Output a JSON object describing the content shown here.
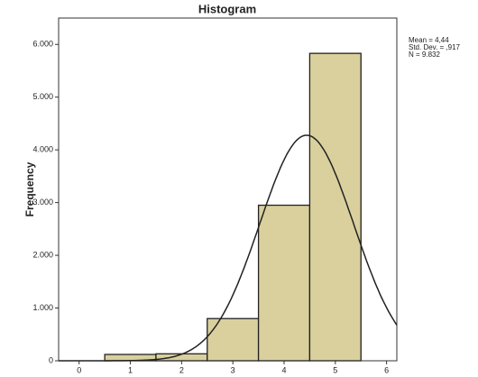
{
  "chart_data": {
    "type": "histogram",
    "title": "Histogram",
    "y_label": "Frequency",
    "bins": [
      0.5,
      1.5,
      2.5,
      3.5,
      4.5,
      5.5
    ],
    "values": [
      120,
      132,
      800,
      2950,
      5830
    ],
    "color": "#d9d09e",
    "xlim": [
      -0.4,
      6.2
    ],
    "xticks": [
      0,
      1,
      2,
      3,
      4,
      5,
      6
    ],
    "ylim": [
      0,
      6500
    ],
    "yticks": [
      0,
      {
        "value": 1000,
        "label": "1.000"
      },
      {
        "value": 2000,
        "label": "2.000"
      },
      {
        "value": 3000,
        "label": "3.000"
      },
      {
        "value": 4000,
        "label": "4.000"
      },
      {
        "value": 5000,
        "label": "5.000"
      },
      {
        "value": 6000,
        "label": "6.000"
      }
    ],
    "stats": [
      {
        "value": 4.44,
        "label": "Mean = 4,44"
      },
      {
        "value": 0.917,
        "label": "Std. Dev. = ,917"
      },
      {
        "value": 9832,
        "label": "N = 9.832"
      }
    ]
  }
}
